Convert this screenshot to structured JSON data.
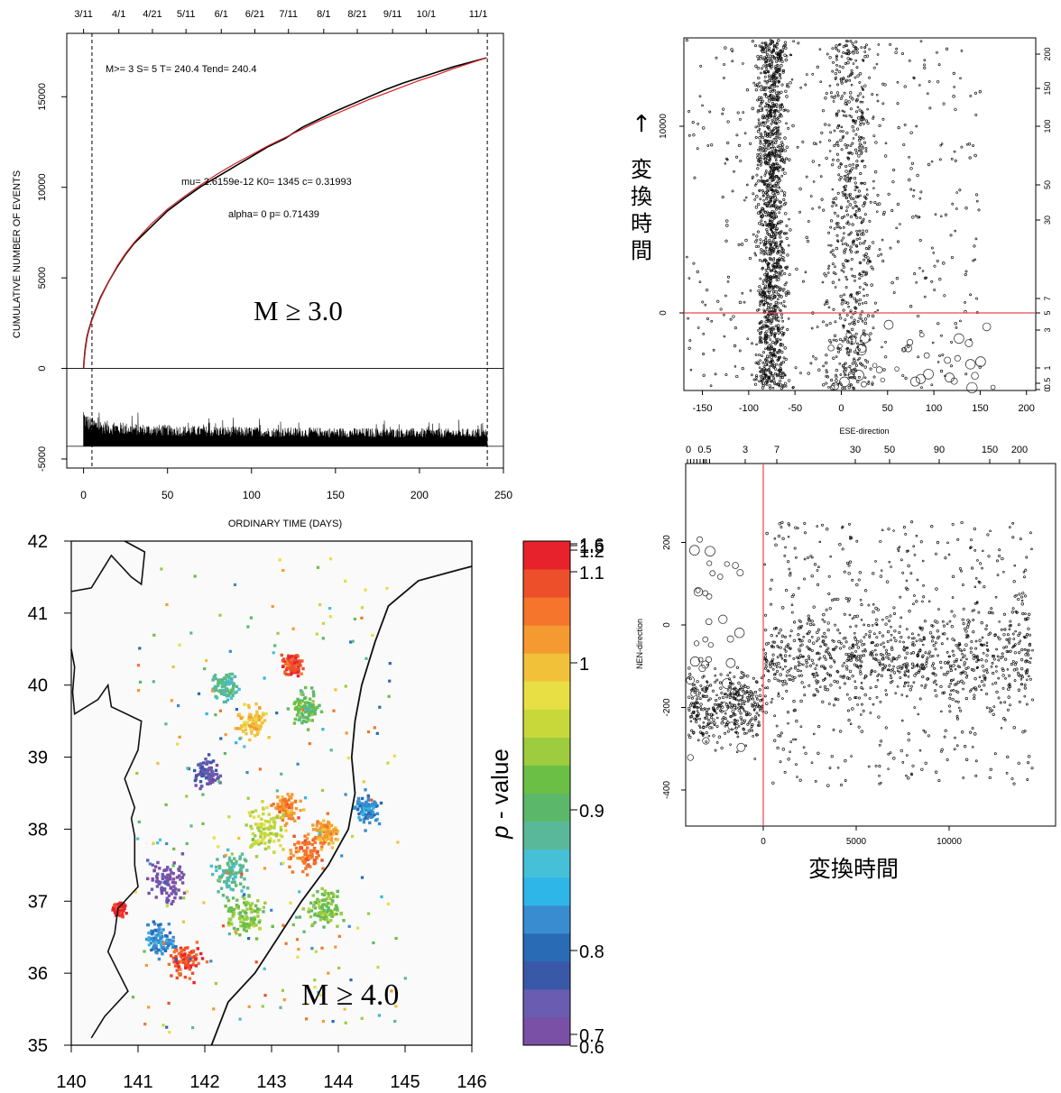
{
  "chart_data": [
    {
      "type": "line",
      "panel": "cumulative-events",
      "ylabel": "CUMULATIVE NUMBER OF EVENTS",
      "xlabel": "ORDINARY TIME (DAYS)",
      "xlim": [
        -10,
        250
      ],
      "ylim": [
        -5500,
        18500
      ],
      "x_ticks": [
        "0",
        "50",
        "100",
        "150",
        "200",
        "250"
      ],
      "x_tick_values": [
        0,
        50,
        100,
        150,
        200,
        250
      ],
      "y_ticks": [
        "-5000",
        "0",
        "5000",
        "10000",
        "15000"
      ],
      "y_tick_values": [
        -5000,
        0,
        5000,
        10000,
        15000
      ],
      "top_date_ticks": [
        "3/11",
        "4/1",
        "4/21",
        "5/11",
        "6/1",
        "6/21",
        "7/11",
        "8/1",
        "8/21",
        "9/11",
        "10/1",
        "11/1"
      ],
      "top_date_values": [
        0,
        21,
        41,
        61,
        82,
        102,
        122,
        143,
        163,
        184,
        204,
        235
      ],
      "annotation_params": "M>= 3  S= 5  T= 240.4  Tend= 240.4",
      "annotation_fit1": "mu= 2.6159e-12 K0= 1345 c= 0.31993",
      "annotation_fit2": "alpha= 0 p= 0.71439",
      "magnitude_label": "M ≥ 3.0",
      "start_line_x": 5,
      "end_line_x": 240.4,
      "fit_params": {
        "K0": 1345,
        "c": 0.31993,
        "p": 0.71439
      },
      "series": [
        {
          "values": [
            [
              0,
              0
            ],
            [
              0.5,
              600
            ],
            [
              1,
              1100
            ],
            [
              2,
              1700
            ],
            [
              3,
              2100
            ],
            [
              5,
              2700
            ],
            [
              10,
              3900
            ],
            [
              15,
              4800
            ],
            [
              20,
              5600
            ],
            [
              25,
              6300
            ],
            [
              30,
              6900
            ],
            [
              40,
              7800
            ],
            [
              50,
              8700
            ],
            [
              60,
              9400
            ],
            [
              70,
              10050
            ],
            [
              80,
              10600
            ],
            [
              90,
              11150
            ],
            [
              100,
              11700
            ],
            [
              110,
              12250
            ],
            [
              120,
              12700
            ],
            [
              130,
              13300
            ],
            [
              140,
              13750
            ],
            [
              150,
              14200
            ],
            [
              160,
              14600
            ],
            [
              170,
              15000
            ],
            [
              180,
              15400
            ],
            [
              190,
              15750
            ],
            [
              200,
              16050
            ],
            [
              210,
              16350
            ],
            [
              220,
              16650
            ],
            [
              230,
              16900
            ],
            [
              240,
              17150
            ]
          ],
          "color": "#000000"
        },
        {
          "values": [
            [
              0,
              0
            ],
            [
              0.5,
              500
            ],
            [
              1,
              1000
            ],
            [
              2,
              1600
            ],
            [
              3,
              2050
            ],
            [
              5,
              2650
            ],
            [
              10,
              3850
            ],
            [
              15,
              4800
            ],
            [
              20,
              5650
            ],
            [
              25,
              6350
            ],
            [
              30,
              6950
            ],
            [
              40,
              7950
            ],
            [
              50,
              8800
            ],
            [
              60,
              9500
            ],
            [
              70,
              10150
            ],
            [
              80,
              10750
            ],
            [
              90,
              11300
            ],
            [
              100,
              11800
            ],
            [
              110,
              12300
            ],
            [
              120,
              12750
            ],
            [
              130,
              13200
            ],
            [
              140,
              13650
            ],
            [
              150,
              14050
            ],
            [
              160,
              14450
            ],
            [
              170,
              14850
            ],
            [
              180,
              15200
            ],
            [
              190,
              15550
            ],
            [
              200,
              15900
            ],
            [
              210,
              16200
            ],
            [
              220,
              16550
            ],
            [
              230,
              16850
            ],
            [
              240,
              17150
            ]
          ],
          "color": "#d62020"
        }
      ]
    },
    {
      "type": "scatter",
      "panel": "ese-direction",
      "xlabel": "ESE-direction",
      "xlim": [
        -170,
        210
      ],
      "x_ticks": [
        "-150",
        "-100",
        "-50",
        "0",
        "50",
        "100",
        "150",
        "200"
      ],
      "x_tick_values": [
        -150,
        -100,
        -50,
        0,
        50,
        100,
        150,
        200
      ],
      "y_ticks": [
        "0",
        "10000"
      ],
      "y_tick_values": [
        0,
        10000
      ],
      "right_ticks": [
        "0",
        "0.5",
        "1",
        "3",
        "5",
        "7",
        "30",
        "50",
        "100",
        "150",
        "200"
      ],
      "arrow": "↑",
      "vertical_label": [
        "変",
        "換",
        "時",
        "間"
      ],
      "reference_line_color": "#e8474f"
    },
    {
      "type": "scatter",
      "panel": "nen-direction",
      "ylabel": "NEN-direction",
      "x_ticks": [
        "0",
        "5000",
        "10000"
      ],
      "x_tick_values": [
        0,
        5000,
        10000
      ],
      "y_ticks": [
        "200",
        "0",
        "-200",
        "-400"
      ],
      "y_tick_values": [
        200,
        0,
        -200,
        -400
      ],
      "top_ticks": [
        "0",
        "0.5",
        "3",
        "7",
        "30",
        "50",
        "90",
        "150",
        "200"
      ],
      "bottom_label": "変換時間",
      "reference_line_color": "#e8474f"
    },
    {
      "type": "heatmap",
      "panel": "p-value-map",
      "xlim": [
        140,
        146
      ],
      "ylim": [
        35,
        42
      ],
      "x_ticks": [
        "140",
        "141",
        "142",
        "143",
        "144",
        "145",
        "146"
      ],
      "x_tick_values": [
        140,
        141,
        142,
        143,
        144,
        145,
        146
      ],
      "y_ticks": [
        "35",
        "36",
        "37",
        "38",
        "39",
        "40",
        "41",
        "42"
      ],
      "y_tick_values": [
        35,
        36,
        37,
        38,
        39,
        40,
        41,
        42
      ],
      "magnitude_label": "M ≥ 4.0",
      "colorbar_label_p": "p",
      "colorbar_label_rest": " - value",
      "colorbar_ticks": [
        "1.6",
        "1.5",
        "1.2",
        "1.1",
        "1",
        "0.9",
        "0.8",
        "0.7",
        "0.6"
      ],
      "colorbar_tick_values": [
        1.6,
        1.5,
        1.2,
        1.1,
        1.0,
        0.9,
        0.8,
        0.7,
        0.6
      ],
      "colorbar_colors": [
        "#7a4fa6",
        "#6a5cb0",
        "#3a58a8",
        "#2a6bb5",
        "#3a8cd0",
        "#2fb6e8",
        "#45c0d6",
        "#5ab89a",
        "#5bb86a",
        "#6cbf45",
        "#9dcc3f",
        "#c8d83b",
        "#e7df44",
        "#f2c13a",
        "#f59a31",
        "#f4752b",
        "#ee4f2b",
        "#e8222c"
      ]
    }
  ]
}
